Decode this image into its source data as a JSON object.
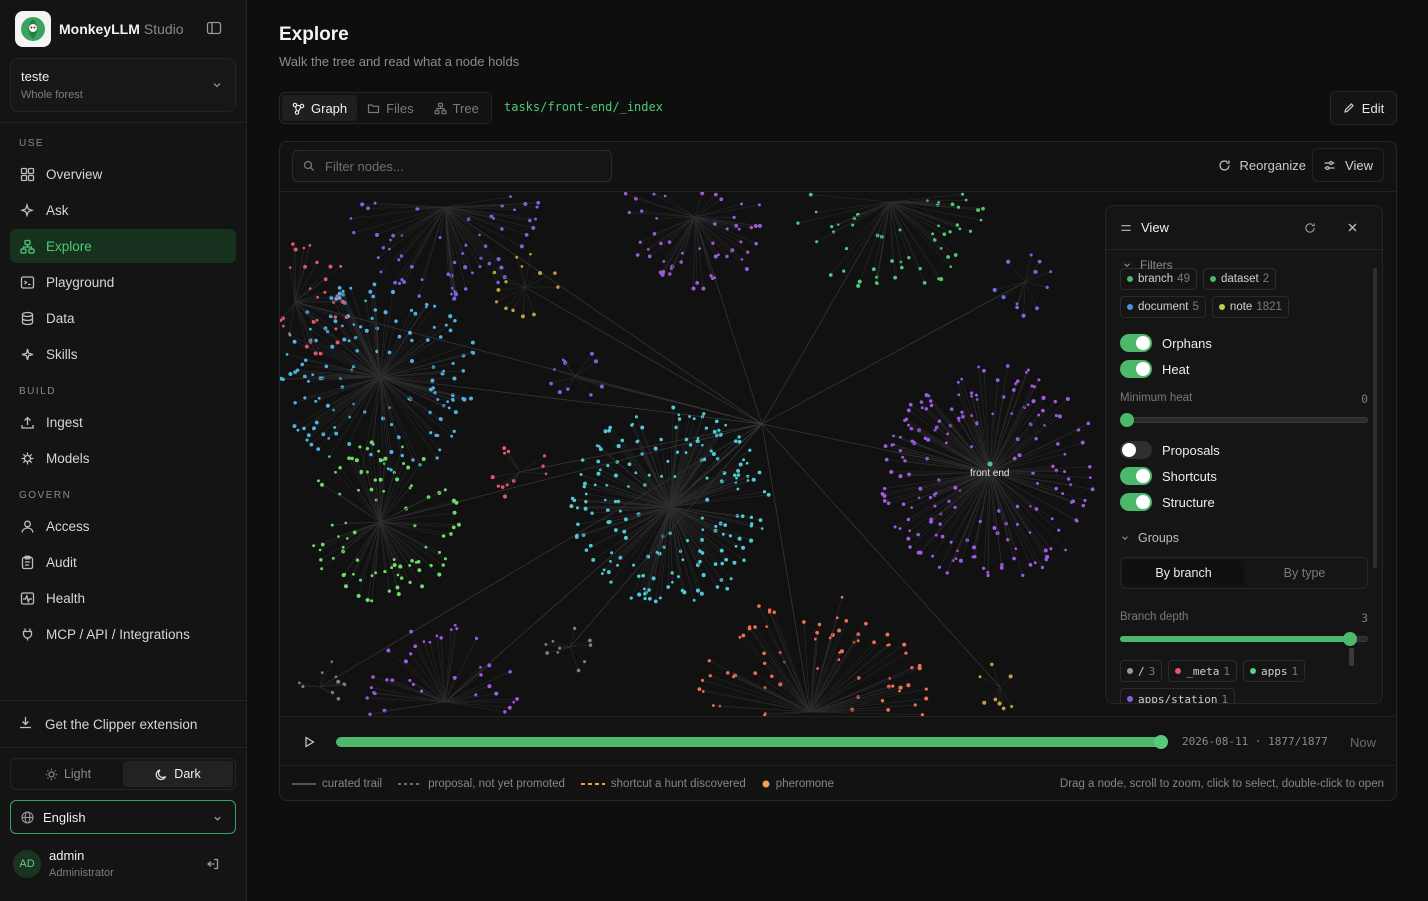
{
  "brand": {
    "name": "MonkeyLLM",
    "sub": "Studio"
  },
  "forest": {
    "title": "teste",
    "subtitle": "Whole forest"
  },
  "nav": {
    "use_label": "USE",
    "use": [
      "Overview",
      "Ask",
      "Explore",
      "Playground",
      "Data",
      "Skills"
    ],
    "build_label": "BUILD",
    "build": [
      "Ingest",
      "Models"
    ],
    "govern_label": "GOVERN",
    "govern": [
      "Access",
      "Audit",
      "Health",
      "MCP / API / Integrations"
    ]
  },
  "clipper": "Get the Clipper extension",
  "theme": {
    "light": "Light",
    "dark": "Dark",
    "selected": "Dark"
  },
  "language": "English",
  "user": {
    "initials": "AD",
    "name": "admin",
    "role": "Administrator"
  },
  "page": {
    "title": "Explore",
    "subtitle": "Walk the tree and read what a node holds"
  },
  "tabs": [
    "Graph",
    "Files",
    "Tree"
  ],
  "path": "tasks/front-end/_index",
  "edit_label": "Edit",
  "toolbar": {
    "filter_placeholder": "Filter nodes...",
    "reorganize": "Reorganize",
    "view": "View"
  },
  "graph": {
    "focus_label": "front end"
  },
  "timeline": {
    "date": "2026-08-11",
    "count": "1877/1877",
    "progress": 1.0,
    "now": "Now"
  },
  "legend": [
    "curated trail",
    "proposal, not yet promoted",
    "shortcut a hunt discovered",
    "pheromone"
  ],
  "hint": "Drag a node, scroll to zoom, click to select, double-click to open",
  "view_panel": {
    "title": "View",
    "filters_label": "Filters",
    "chips": [
      {
        "label": "branch",
        "count": "49",
        "color": "#4cb86c"
      },
      {
        "label": "dataset",
        "count": "2",
        "color": "#4cb86c"
      },
      {
        "label": "document",
        "count": "5",
        "color": "#4f8fe0"
      },
      {
        "label": "note",
        "count": "1821",
        "color": "#c6c94a"
      }
    ],
    "toggles": [
      {
        "label": "Orphans",
        "on": true
      },
      {
        "label": "Heat",
        "on": true
      },
      {
        "label": "Proposals",
        "on": false
      },
      {
        "label": "Shortcuts",
        "on": true
      },
      {
        "label": "Structure",
        "on": true
      }
    ],
    "min_heat": {
      "label": "Minimum heat",
      "value": "0"
    },
    "groups_label": "Groups",
    "group_modes": [
      "By branch",
      "By type"
    ],
    "branch_depth": {
      "label": "Branch depth",
      "value": "3",
      "fraction": 1.0
    },
    "branch_chips": [
      {
        "label": "/",
        "count": "3",
        "color": "#9a9a9a"
      },
      {
        "label": "_meta",
        "count": "1",
        "color": "#e0566c"
      },
      {
        "label": "apps",
        "count": "1",
        "color": "#5bd184"
      },
      {
        "label": "apps/station",
        "count": "1",
        "color": "#8a5be0"
      }
    ]
  }
}
